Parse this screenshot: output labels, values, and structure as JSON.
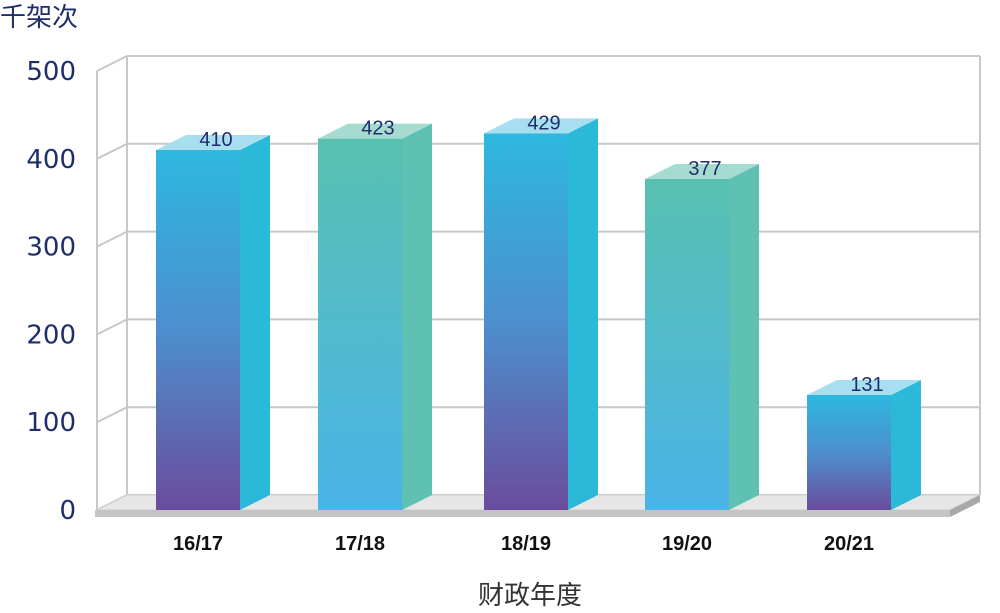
{
  "chart_data": {
    "type": "bar",
    "categories": [
      "16/17",
      "17/18",
      "18/19",
      "19/20",
      "20/21"
    ],
    "values": [
      410,
      423,
      429,
      377,
      131
    ],
    "xlabel": "财政年度",
    "ylabel": "千架次",
    "ylim": [
      0,
      500
    ],
    "yticks": [
      0,
      100,
      200,
      300,
      400,
      500
    ],
    "grid": true,
    "legend": "none",
    "bar_styles": [
      "blue-purple",
      "teal-blue",
      "blue-purple",
      "teal-blue",
      "blue-purple"
    ]
  },
  "colors": {
    "axis_text": "#1f2d6b",
    "grid": "#c8c8c8",
    "blue_purple_top": "#2db8e0",
    "blue_purple_bottom": "#6a4c9c",
    "teal_blue_top": "#58c0b0",
    "teal_blue_bottom": "#4ab4e8"
  }
}
